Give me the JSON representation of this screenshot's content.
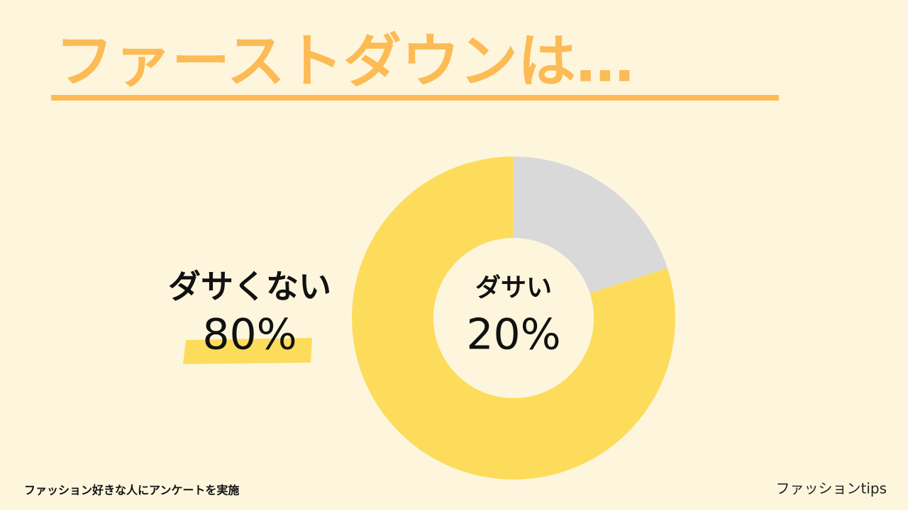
{
  "chart_data": {
    "type": "donut",
    "title": "ファーストダウンは…",
    "categories": [
      "ダサい",
      "ダサくない"
    ],
    "values": [
      20,
      80
    ],
    "value_labels": [
      "20%",
      "80%"
    ],
    "colors": [
      "#d9d9d9",
      "#fddc5c"
    ]
  },
  "footer": {
    "note": "ファッション好きな人にアンケートを実施",
    "brand": "ファッションtips"
  }
}
